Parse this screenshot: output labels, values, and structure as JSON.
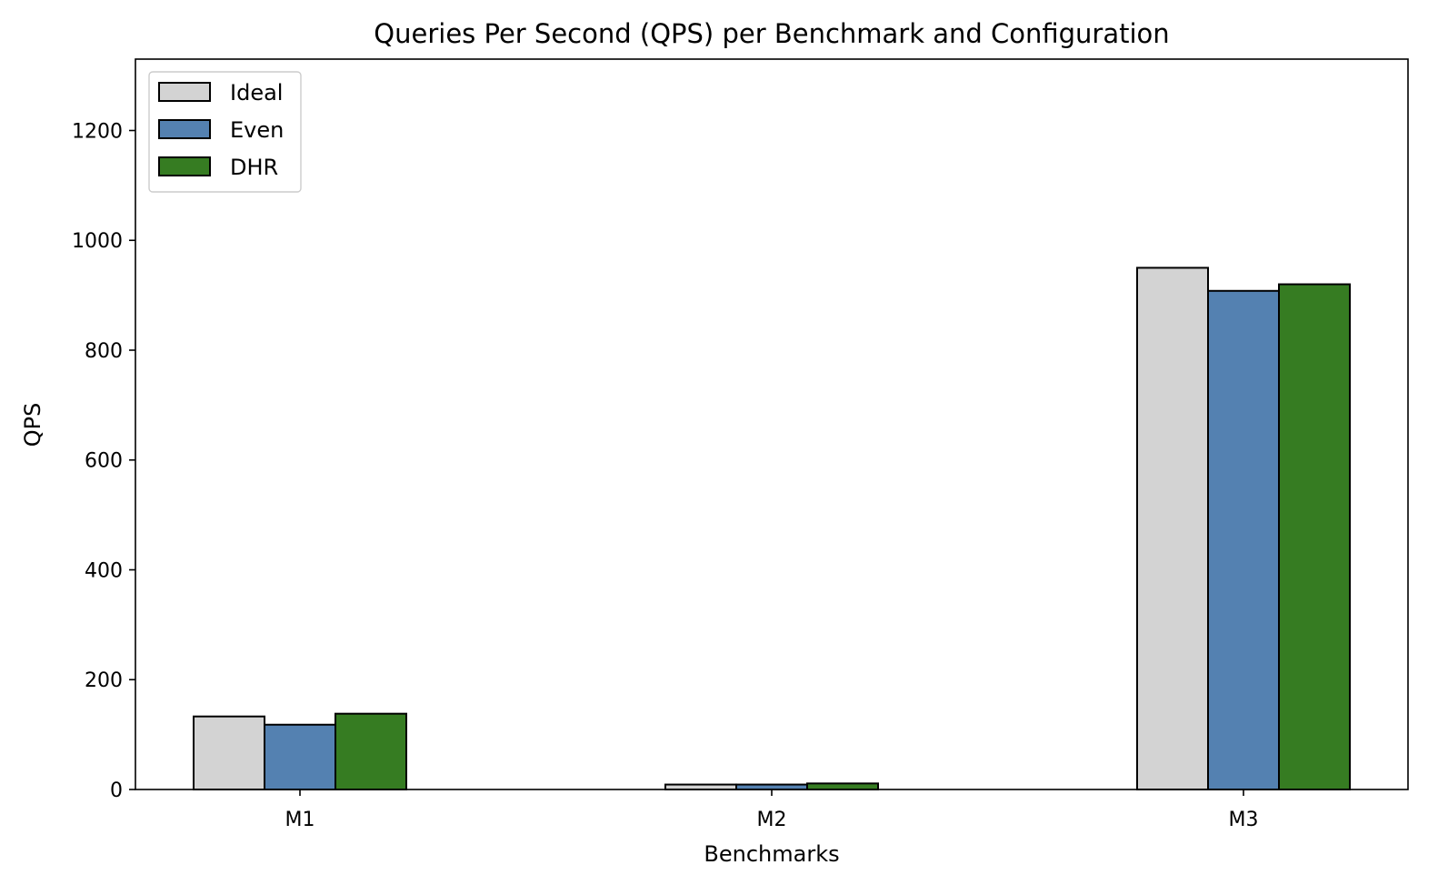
{
  "chart_data": {
    "type": "bar",
    "title": "Queries Per Second (QPS) per Benchmark and Configuration",
    "xlabel": "Benchmarks",
    "ylabel": "QPS",
    "categories": [
      "M1",
      "M2",
      "M3"
    ],
    "ylim": [
      0,
      1330
    ],
    "yticks": [
      0,
      200,
      400,
      600,
      800,
      1000,
      1200
    ],
    "grid": false,
    "legend_position": "top-left",
    "series": [
      {
        "name": "Ideal",
        "color": "#d3d3d3",
        "values": [
          133,
          9,
          950
        ]
      },
      {
        "name": "Even",
        "color": "#5481b1",
        "values": [
          118,
          9,
          908
        ]
      },
      {
        "name": "DHR",
        "color": "#367c22",
        "values": [
          138,
          11,
          920
        ]
      }
    ]
  }
}
